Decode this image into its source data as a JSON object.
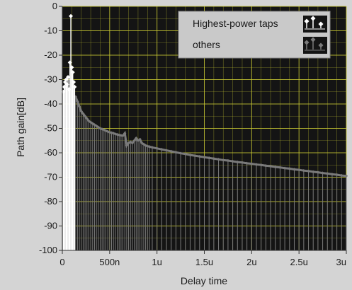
{
  "chart_data": {
    "type": "scatter",
    "title": "",
    "xlabel": "Delay time",
    "ylabel": "Path gain[dB]",
    "xlim": [
      0,
      3.0
    ],
    "ylim": [
      -100,
      0
    ],
    "x_unit": "us",
    "x_ticks": [
      {
        "value": 0,
        "label": "0"
      },
      {
        "value": 0.5,
        "label": "500n"
      },
      {
        "value": 1.0,
        "label": "1u"
      },
      {
        "value": 1.5,
        "label": "1.5u"
      },
      {
        "value": 2.0,
        "label": "2u"
      },
      {
        "value": 2.5,
        "label": "2.5u"
      },
      {
        "value": 3.0,
        "label": "3u"
      }
    ],
    "y_ticks": [
      0,
      -10,
      -20,
      -30,
      -40,
      -50,
      -60,
      -70,
      -80,
      -90,
      -100
    ],
    "y_tick_labels": [
      "0",
      "-10",
      "-20",
      "-30",
      "-40",
      "-50",
      "-60",
      "-70",
      "-80",
      "-90",
      "-100"
    ],
    "grid": true,
    "legend_position": "top-right",
    "colors": {
      "plot_bg": "#141414",
      "grid": "#c8c832",
      "highest": "#ffffff",
      "others": "#7a7a7a",
      "frame": "#d4d4d4"
    },
    "series": [
      {
        "name": "Highest-power taps",
        "points": [
          [
            0.01,
            -35
          ],
          [
            0.02,
            -33
          ],
          [
            0.03,
            -31
          ],
          [
            0.04,
            -30
          ],
          [
            0.05,
            -32
          ],
          [
            0.06,
            -29
          ],
          [
            0.07,
            -34
          ],
          [
            0.08,
            -23
          ],
          [
            0.09,
            -4
          ],
          [
            0.1,
            -25
          ],
          [
            0.11,
            -27
          ],
          [
            0.12,
            -31
          ],
          [
            0.13,
            -33
          ]
        ]
      },
      {
        "name": "others",
        "points": [
          [
            0.14,
            -37
          ],
          [
            0.16,
            -39
          ],
          [
            0.18,
            -41
          ],
          [
            0.2,
            -43
          ],
          [
            0.22,
            -44
          ],
          [
            0.24,
            -45
          ],
          [
            0.26,
            -46
          ],
          [
            0.28,
            -47
          ],
          [
            0.3,
            -47.5
          ],
          [
            0.32,
            -48
          ],
          [
            0.34,
            -48.5
          ],
          [
            0.36,
            -49
          ],
          [
            0.38,
            -49.5
          ],
          [
            0.4,
            -50
          ],
          [
            0.42,
            -50.3
          ],
          [
            0.44,
            -50.6
          ],
          [
            0.46,
            -51
          ],
          [
            0.48,
            -51.3
          ],
          [
            0.5,
            -51.6
          ],
          [
            0.52,
            -51.8
          ],
          [
            0.54,
            -52
          ],
          [
            0.56,
            -52.3
          ],
          [
            0.58,
            -52.5
          ],
          [
            0.6,
            -52.7
          ],
          [
            0.62,
            -52.9
          ],
          [
            0.64,
            -53
          ],
          [
            0.66,
            -52
          ],
          [
            0.68,
            -57
          ],
          [
            0.7,
            -56
          ],
          [
            0.72,
            -55.5
          ],
          [
            0.74,
            -56
          ],
          [
            0.76,
            -55
          ],
          [
            0.78,
            -54
          ],
          [
            0.8,
            -55
          ],
          [
            0.82,
            -54.5
          ],
          [
            0.84,
            -56
          ],
          [
            0.86,
            -56.5
          ],
          [
            0.88,
            -57
          ],
          [
            0.9,
            -57.3
          ],
          [
            0.92,
            -57.5
          ],
          [
            0.95,
            -57.8
          ],
          [
            1.0,
            -58.2
          ],
          [
            1.05,
            -58.6
          ],
          [
            1.1,
            -59
          ],
          [
            1.15,
            -59.4
          ],
          [
            1.2,
            -59.8
          ],
          [
            1.25,
            -60.2
          ],
          [
            1.3,
            -60.5
          ],
          [
            1.35,
            -60.9
          ],
          [
            1.4,
            -61.2
          ],
          [
            1.45,
            -61.5
          ],
          [
            1.5,
            -61.8
          ],
          [
            1.55,
            -62.1
          ],
          [
            1.6,
            -62.4
          ],
          [
            1.65,
            -62.7
          ],
          [
            1.7,
            -63
          ],
          [
            1.75,
            -63.2
          ],
          [
            1.8,
            -63.5
          ],
          [
            1.85,
            -63.8
          ],
          [
            1.9,
            -64
          ],
          [
            1.95,
            -64.3
          ],
          [
            2.0,
            -64.5
          ],
          [
            2.05,
            -64.8
          ],
          [
            2.1,
            -65
          ],
          [
            2.15,
            -65.3
          ],
          [
            2.2,
            -65.5
          ],
          [
            2.25,
            -65.8
          ],
          [
            2.3,
            -66
          ],
          [
            2.35,
            -66.3
          ],
          [
            2.4,
            -66.5
          ],
          [
            2.45,
            -66.8
          ],
          [
            2.5,
            -67
          ],
          [
            2.55,
            -67.3
          ],
          [
            2.6,
            -67.5
          ],
          [
            2.65,
            -67.8
          ],
          [
            2.7,
            -68
          ],
          [
            2.75,
            -68.3
          ],
          [
            2.8,
            -68.5
          ],
          [
            2.85,
            -68.8
          ],
          [
            2.9,
            -69
          ],
          [
            2.95,
            -69.3
          ],
          [
            3.0,
            -69.5
          ]
        ]
      }
    ]
  }
}
